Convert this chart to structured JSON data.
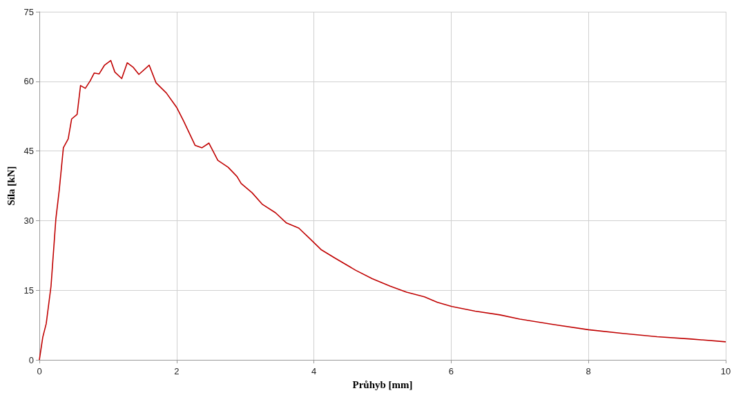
{
  "chart_data": {
    "type": "line",
    "xlabel": "Průhyb [mm]",
    "ylabel": "Síla [kN]",
    "xlim": [
      0,
      10
    ],
    "xticks": [
      0,
      2,
      4,
      6,
      8,
      10
    ],
    "ylim": [
      0,
      75
    ],
    "yticks": [
      0,
      15,
      30,
      45,
      60,
      75
    ],
    "grid": true,
    "marker": "none",
    "line_style": "solid",
    "series": [
      {
        "color": "#c00000",
        "x": [
          0,
          0.05,
          0.1,
          0.17,
          0.24,
          0.29,
          0.35,
          0.42,
          0.47,
          0.55,
          0.6,
          0.67,
          0.74,
          0.8,
          0.87,
          0.95,
          1.04,
          1.1,
          1.2,
          1.28,
          1.37,
          1.45,
          1.6,
          1.7,
          1.85,
          2.0,
          2.1,
          2.27,
          2.37,
          2.47,
          2.6,
          2.75,
          2.88,
          2.94,
          3.1,
          3.25,
          3.44,
          3.6,
          3.78,
          3.95,
          4.11,
          4.3,
          4.61,
          4.85,
          5.11,
          5.35,
          5.61,
          5.8,
          6.01,
          6.35,
          6.71,
          7.0,
          7.5,
          8.0,
          8.5,
          9.0,
          9.5,
          10.0
        ],
        "values": [
          0,
          4.9,
          7.8,
          15.9,
          30.3,
          36.6,
          45.7,
          47.6,
          51.9,
          52.9,
          59.1,
          58.5,
          60.1,
          61.8,
          61.6,
          63.5,
          64.5,
          62.0,
          60.6,
          64.0,
          63.0,
          61.5,
          63.5,
          59.7,
          57.5,
          54.4,
          51.5,
          46.2,
          45.7,
          46.7,
          43.0,
          41.5,
          39.5,
          38.0,
          36.0,
          33.5,
          31.7,
          29.5,
          28.4,
          26.0,
          23.7,
          22.0,
          19.3,
          17.5,
          15.9,
          14.6,
          13.6,
          12.4,
          11.5,
          10.5,
          9.7,
          8.8,
          7.6,
          6.5,
          5.7,
          5.0,
          4.5,
          3.9
        ]
      }
    ]
  }
}
